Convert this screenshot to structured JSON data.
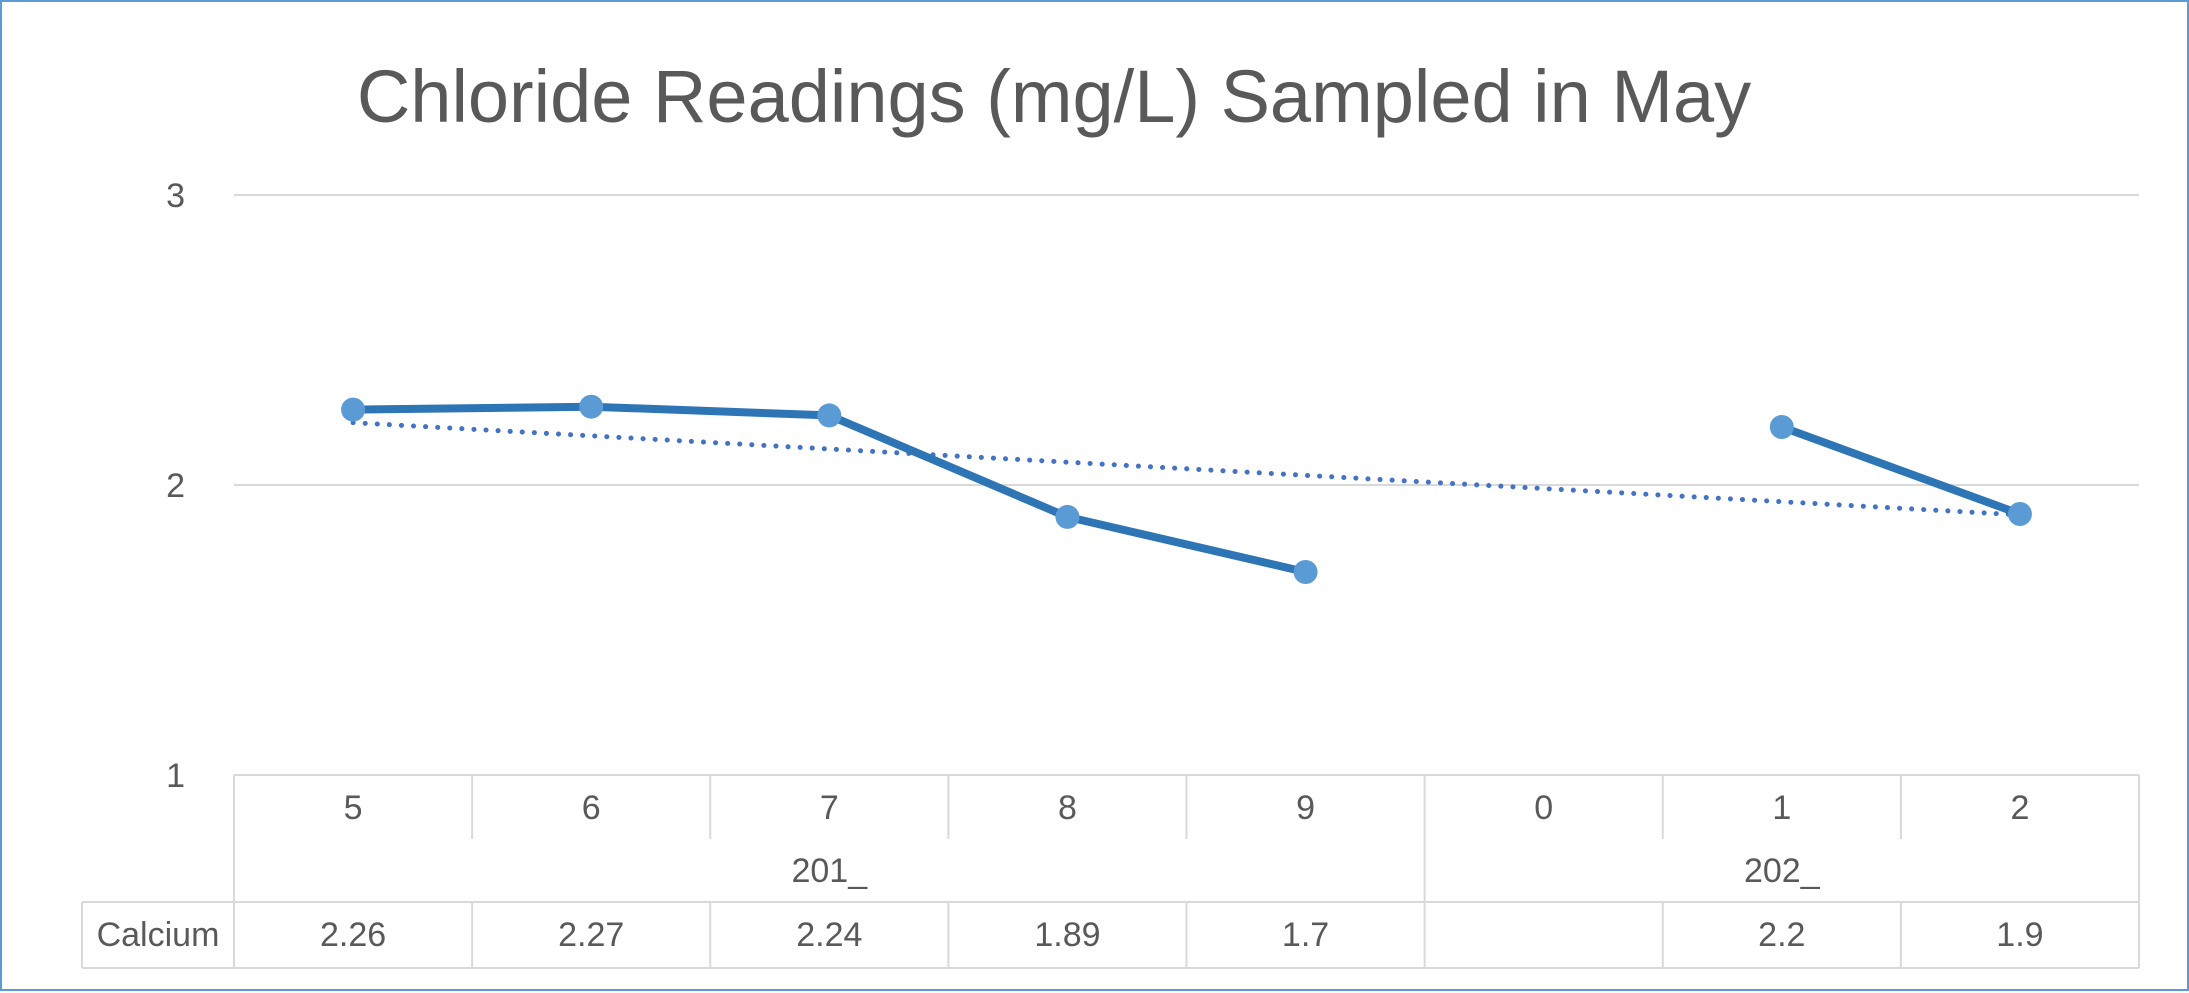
{
  "chart_data": {
    "type": "line",
    "title": "Chloride Readings (mg/L) Sampled in May",
    "ylim": [
      1,
      3
    ],
    "yticks": [
      "1",
      "2",
      "3"
    ],
    "grid": true,
    "categories": [
      {
        "year_digit": "5",
        "group": "201_"
      },
      {
        "year_digit": "6",
        "group": "201_"
      },
      {
        "year_digit": "7",
        "group": "201_"
      },
      {
        "year_digit": "8",
        "group": "201_"
      },
      {
        "year_digit": "9",
        "group": "201_"
      },
      {
        "year_digit": "0",
        "group": "202_"
      },
      {
        "year_digit": "1",
        "group": "202_"
      },
      {
        "year_digit": "2",
        "group": "202_"
      }
    ],
    "groups": [
      {
        "label": "201_",
        "count": 5
      },
      {
        "label": "202_",
        "count": 3
      }
    ],
    "series": [
      {
        "name": "Calcium",
        "values": [
          2.26,
          2.27,
          2.24,
          1.89,
          1.7,
          null,
          2.2,
          1.9
        ],
        "table_labels": [
          "2.26",
          "2.27",
          "2.24",
          "1.89",
          "1.7",
          "",
          "2.2",
          "1.9"
        ],
        "color": "#2e75b6",
        "marker_color": "#5b9bd5"
      }
    ],
    "trendline": {
      "type": "linear",
      "style": "dotted",
      "color": "#4472c4"
    },
    "data_table": true,
    "colors": {
      "grid": "#d9d9d9",
      "text": "#595959",
      "frame": "#5b9bd5"
    }
  }
}
